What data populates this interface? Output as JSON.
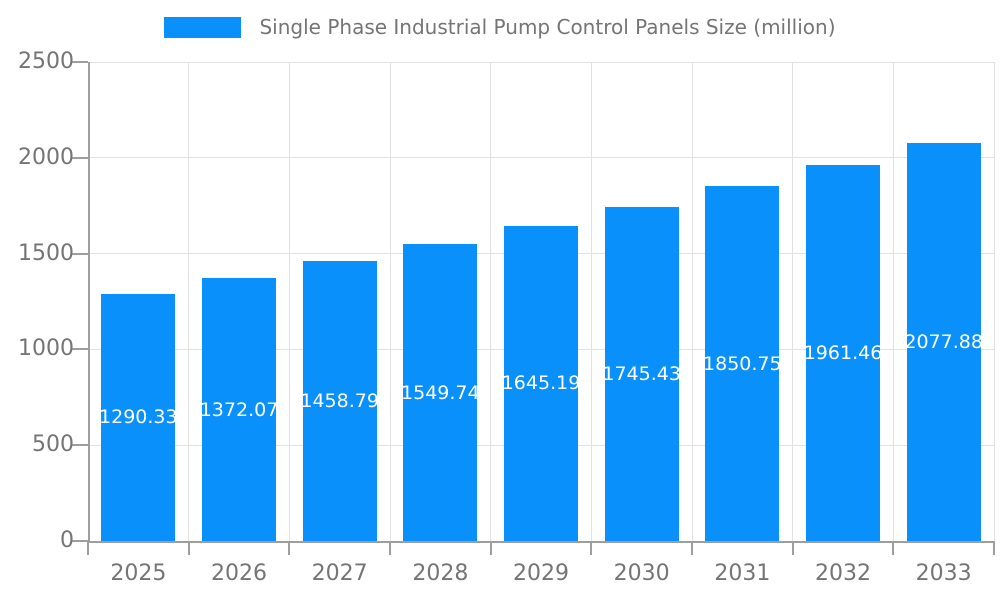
{
  "legend": {
    "label": "Single Phase Industrial Pump Control Panels Size (million)"
  },
  "chart_data": {
    "type": "bar",
    "title": "Single Phase Industrial Pump Control Panels Size (million)",
    "categories": [
      "2025",
      "2026",
      "2027",
      "2028",
      "2029",
      "2030",
      "2031",
      "2032",
      "2033"
    ],
    "values": [
      1290.33,
      1372.07,
      1458.79,
      1549.74,
      1645.19,
      1745.43,
      1850.75,
      1961.46,
      2077.88
    ],
    "bar_labels": [
      "1290.33",
      "1372.07",
      "1458.79",
      "1549.74",
      "1645.19",
      "1745.43",
      "1850.75",
      "1961.46",
      "2077.88"
    ],
    "xlabel": "",
    "ylabel": "",
    "ylim": [
      0,
      2500
    ],
    "yticks": [
      0,
      500,
      1000,
      1500,
      2000,
      2500
    ],
    "grid": true,
    "legend_position": "top",
    "colors": {
      "bar": "#0990fb",
      "grid": "#e2e2e2",
      "axis": "#9e9e9e",
      "text": "#757575",
      "bar_label": "#ffffff",
      "background": "#ffffff"
    }
  }
}
